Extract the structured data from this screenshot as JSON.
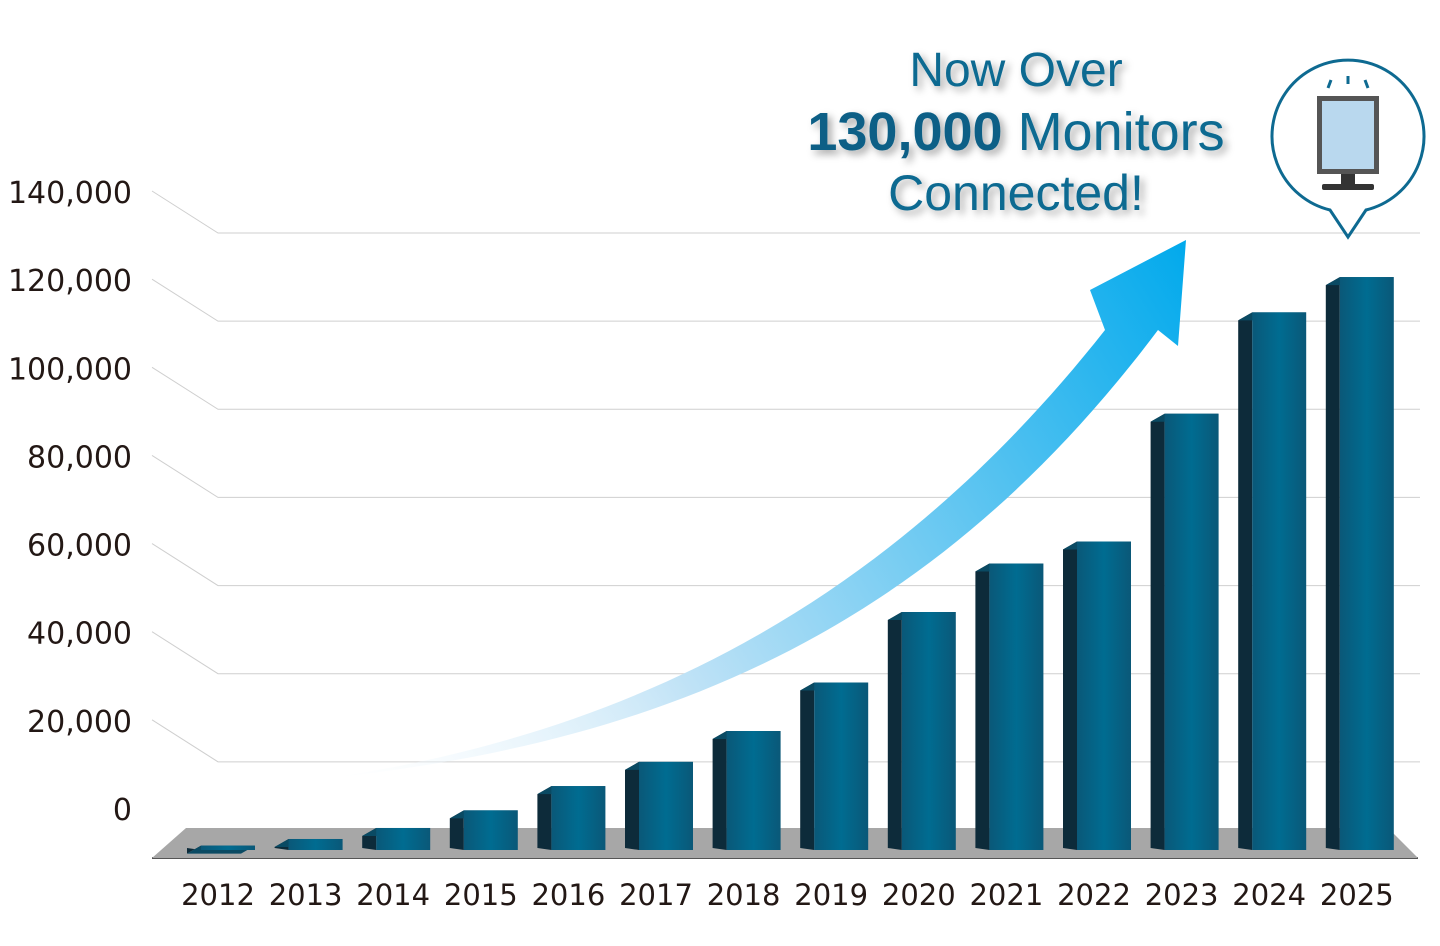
{
  "headline": {
    "line1": "Now Over",
    "line2_bold": "130,000",
    "line2_rest": " Monitors",
    "line3": "Connected!"
  },
  "icon": "monitor-icon",
  "colors": {
    "bar_front": "#006a8e",
    "bar_side": "#0d2b3a",
    "bar_top": "#0a4a63",
    "floor": "#a7a7a7",
    "arrow_start": "#e8f4fc",
    "arrow_end": "#00a9ec",
    "headline": "#0e6a91"
  },
  "chart_data": {
    "type": "bar",
    "categories": [
      "2012",
      "2013",
      "2014",
      "2015",
      "2016",
      "2017",
      "2018",
      "2019",
      "2020",
      "2021",
      "2022",
      "2023",
      "2024",
      "2025"
    ],
    "values": [
      1000,
      2500,
      5000,
      9000,
      14500,
      20000,
      27000,
      38000,
      54000,
      65000,
      70000,
      99000,
      122000,
      130000
    ],
    "ylim": [
      0,
      140000
    ],
    "yticks": [
      "0",
      "20,000",
      "40,000",
      "60,000",
      "80,000",
      "100,000",
      "120,000",
      "140,000"
    ],
    "title": "",
    "xlabel": "",
    "ylabel": "",
    "grid": true
  }
}
